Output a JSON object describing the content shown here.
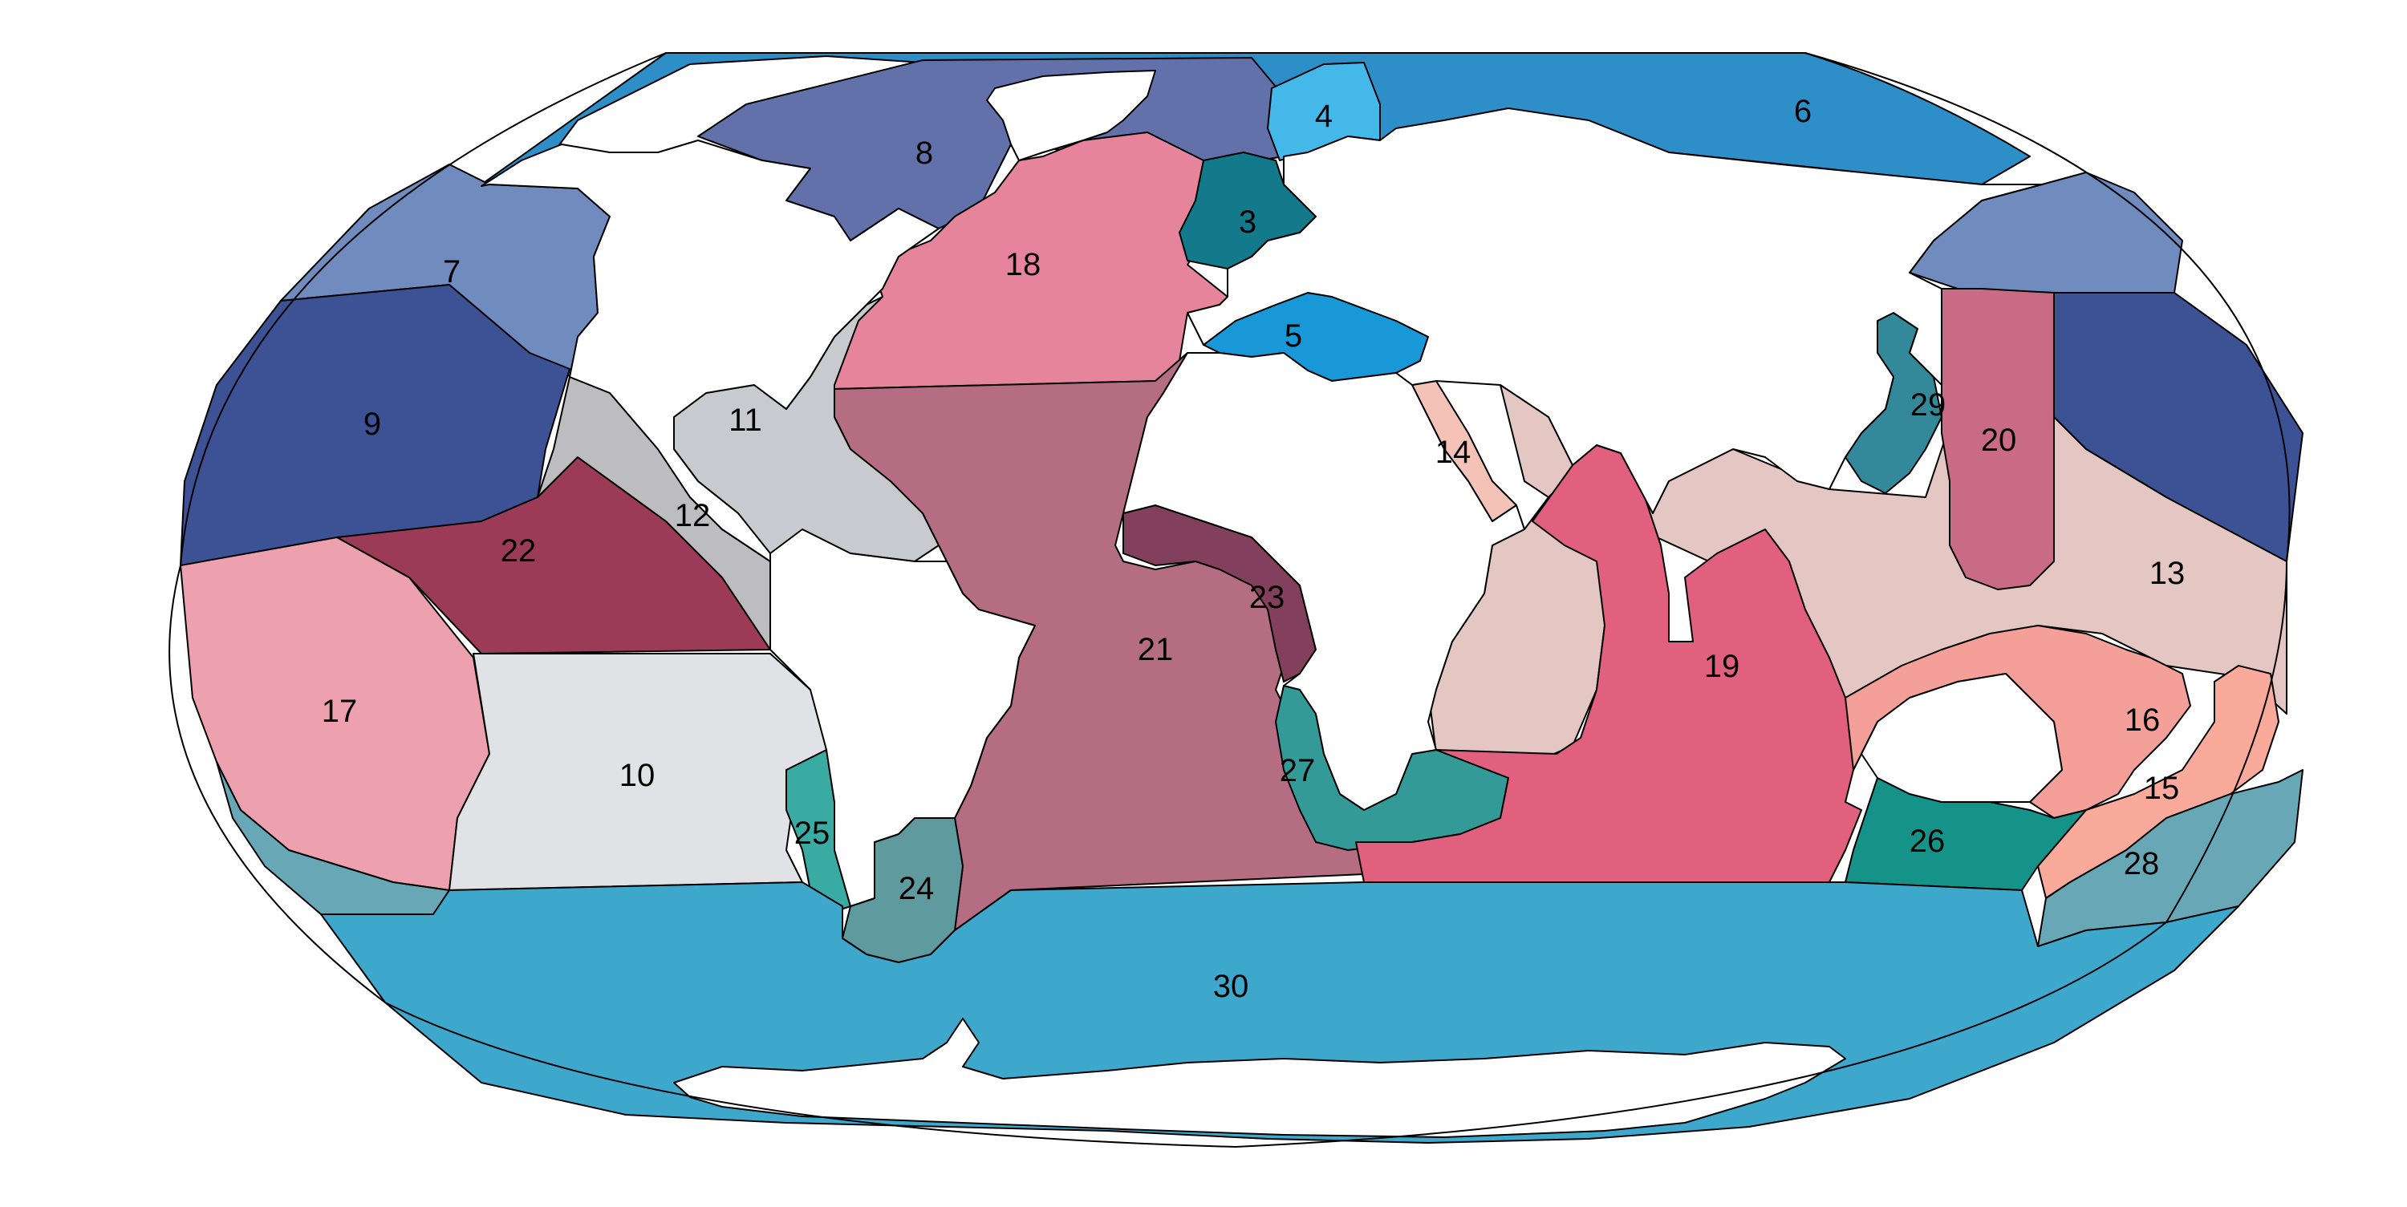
{
  "map": {
    "projection": "robinson-like world map",
    "land_color": "#ffffff",
    "outline_color": "#000000",
    "regions": [
      {
        "id": 3,
        "label": "3",
        "color": "#127a8a"
      },
      {
        "id": 4,
        "label": "4",
        "color": "#44b8e8"
      },
      {
        "id": 5,
        "label": "5",
        "color": "#1898d6"
      },
      {
        "id": 6,
        "label": "6",
        "color": "#2e8ec8"
      },
      {
        "id": 7,
        "label": "7",
        "color": "#708bbd"
      },
      {
        "id": 8,
        "label": "8",
        "color": "#6271aa"
      },
      {
        "id": 9,
        "label": "9",
        "color": "#3d5295"
      },
      {
        "id": 10,
        "label": "10",
        "color": "#e1e2e5"
      },
      {
        "id": 11,
        "label": "11",
        "color": "#c9cacf"
      },
      {
        "id": 12,
        "label": "12",
        "color": "#bdbdc0"
      },
      {
        "id": 13,
        "label": "13",
        "color": "#e4c6c2"
      },
      {
        "id": 14,
        "label": "14",
        "color": "#f5c2b8"
      },
      {
        "id": 15,
        "label": "15",
        "color": "#f9aa9a"
      },
      {
        "id": 16,
        "label": "16",
        "color": "#f4a098"
      },
      {
        "id": 17,
        "label": "17",
        "color": "#eda0ad"
      },
      {
        "id": 18,
        "label": "18",
        "color": "#e5849b"
      },
      {
        "id": 19,
        "label": "19",
        "color": "#e0607e"
      },
      {
        "id": 20,
        "label": "20",
        "color": "#c96b85"
      },
      {
        "id": 21,
        "label": "21",
        "color": "#b56d84"
      },
      {
        "id": 22,
        "label": "22",
        "color": "#9c3b58"
      },
      {
        "id": 23,
        "label": "23",
        "color": "#83405c"
      },
      {
        "id": 24,
        "label": "24",
        "color": "#5e9a9e"
      },
      {
        "id": 25,
        "label": "25",
        "color": "#3aaba2"
      },
      {
        "id": 26,
        "label": "26",
        "color": "#169388"
      },
      {
        "id": 27,
        "label": "27",
        "color": "#349a98"
      },
      {
        "id": 28,
        "label": "28",
        "color": "#68a8b6"
      },
      {
        "id": 29,
        "label": "29",
        "color": "#338999"
      },
      {
        "id": 30,
        "label": "30",
        "color": "#3ea8cc"
      }
    ]
  }
}
